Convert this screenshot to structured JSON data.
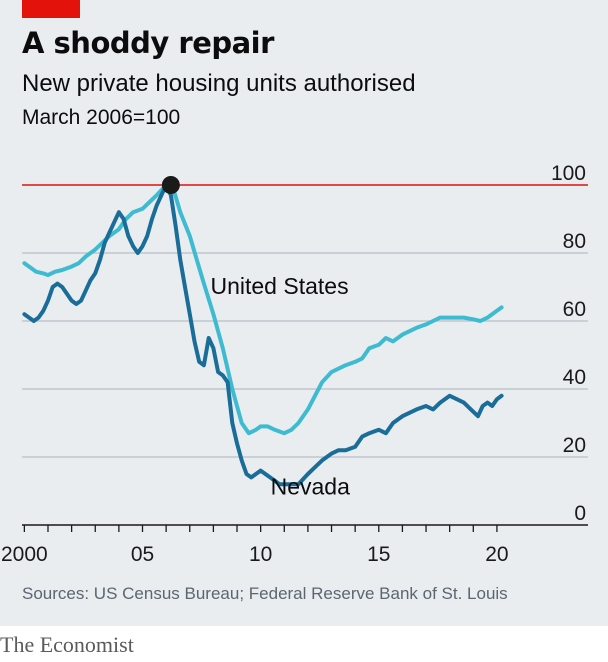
{
  "title": "A shoddy repair",
  "subtitle": "New private housing units authorised",
  "unit_label": "March 2006=100",
  "source": "Sources: US Census Bureau; Federal Reserve Bank of St. Louis",
  "footer": "The Economist",
  "colors": {
    "background": "#e9edf0",
    "accent_red": "#e3120b",
    "united_states": "#3ebbd0",
    "nevada": "#1a6d98",
    "gridline": "#b7c0c7",
    "baseline_100": "#e3120b",
    "marker": "#1a1a1a"
  },
  "chart_data": {
    "type": "line",
    "xlim": [
      1999.9,
      2021.4
    ],
    "ylim": [
      0,
      100
    ],
    "x_ticks": [
      2000,
      2001,
      2002,
      2003,
      2004,
      2005,
      2006,
      2007,
      2008,
      2009,
      2010,
      2011,
      2012,
      2013,
      2014,
      2015,
      2016,
      2017,
      2018,
      2019,
      2020
    ],
    "x_tick_labels": [
      {
        "x": 2000,
        "label": "2000"
      },
      {
        "x": 2005,
        "label": "05"
      },
      {
        "x": 2010,
        "label": "10"
      },
      {
        "x": 2015,
        "label": "15"
      },
      {
        "x": 2020,
        "label": "20"
      }
    ],
    "y_ticks": [
      0,
      20,
      40,
      60,
      80,
      100
    ],
    "y_tick_labels": [
      "0",
      "20",
      "40",
      "60",
      "80",
      "100"
    ],
    "grid": true,
    "reference_line": {
      "y": 100
    },
    "marker_point": {
      "x": 2006.2,
      "y": 100
    },
    "series": [
      {
        "name": "United States",
        "points": [
          [
            2000.0,
            77
          ],
          [
            2000.2,
            76
          ],
          [
            2000.5,
            74.5
          ],
          [
            2000.8,
            74
          ],
          [
            2001.0,
            73.5
          ],
          [
            2001.3,
            74.5
          ],
          [
            2001.6,
            75
          ],
          [
            2002.0,
            76
          ],
          [
            2002.3,
            77
          ],
          [
            2002.6,
            79
          ],
          [
            2003.0,
            81
          ],
          [
            2003.3,
            83
          ],
          [
            2003.6,
            85
          ],
          [
            2004.0,
            87
          ],
          [
            2004.3,
            90
          ],
          [
            2004.6,
            92
          ],
          [
            2005.0,
            93
          ],
          [
            2005.3,
            95
          ],
          [
            2005.6,
            97
          ],
          [
            2006.0,
            100
          ],
          [
            2006.3,
            99
          ],
          [
            2006.6,
            92
          ],
          [
            2007.0,
            85
          ],
          [
            2007.3,
            78
          ],
          [
            2007.6,
            71
          ],
          [
            2008.0,
            62
          ],
          [
            2008.4,
            52
          ],
          [
            2008.8,
            40
          ],
          [
            2009.2,
            30
          ],
          [
            2009.5,
            27
          ],
          [
            2009.8,
            28
          ],
          [
            2010.0,
            29
          ],
          [
            2010.3,
            29
          ],
          [
            2010.6,
            28
          ],
          [
            2011.0,
            27
          ],
          [
            2011.3,
            28
          ],
          [
            2011.6,
            30
          ],
          [
            2012.0,
            34
          ],
          [
            2012.3,
            38
          ],
          [
            2012.6,
            42
          ],
          [
            2013.0,
            45
          ],
          [
            2013.3,
            46
          ],
          [
            2013.6,
            47
          ],
          [
            2014.0,
            48
          ],
          [
            2014.3,
            49
          ],
          [
            2014.6,
            52
          ],
          [
            2015.0,
            53
          ],
          [
            2015.3,
            55
          ],
          [
            2015.6,
            54
          ],
          [
            2016.0,
            56
          ],
          [
            2016.3,
            57
          ],
          [
            2016.6,
            58
          ],
          [
            2017.0,
            59
          ],
          [
            2017.3,
            60
          ],
          [
            2017.6,
            61
          ],
          [
            2018.0,
            61
          ],
          [
            2018.3,
            61
          ],
          [
            2018.6,
            61
          ],
          [
            2019.0,
            60.5
          ],
          [
            2019.3,
            60
          ],
          [
            2019.6,
            61
          ],
          [
            2020.0,
            63
          ],
          [
            2020.2,
            64
          ]
        ]
      },
      {
        "name": "Nevada",
        "points": [
          [
            2000.0,
            62
          ],
          [
            2000.2,
            61
          ],
          [
            2000.4,
            60
          ],
          [
            2000.6,
            61
          ],
          [
            2000.8,
            63
          ],
          [
            2001.0,
            66
          ],
          [
            2001.2,
            70
          ],
          [
            2001.4,
            71
          ],
          [
            2001.6,
            70
          ],
          [
            2001.8,
            68
          ],
          [
            2002.0,
            66
          ],
          [
            2002.2,
            65
          ],
          [
            2002.4,
            66
          ],
          [
            2002.6,
            69
          ],
          [
            2002.8,
            72
          ],
          [
            2003.0,
            74
          ],
          [
            2003.2,
            78
          ],
          [
            2003.4,
            83
          ],
          [
            2003.6,
            86
          ],
          [
            2003.8,
            89
          ],
          [
            2004.0,
            92
          ],
          [
            2004.2,
            90
          ],
          [
            2004.4,
            85
          ],
          [
            2004.6,
            82
          ],
          [
            2004.8,
            80
          ],
          [
            2005.0,
            82
          ],
          [
            2005.2,
            85
          ],
          [
            2005.4,
            90
          ],
          [
            2005.6,
            94
          ],
          [
            2005.8,
            97
          ],
          [
            2006.0,
            100
          ],
          [
            2006.2,
            97
          ],
          [
            2006.4,
            88
          ],
          [
            2006.6,
            78
          ],
          [
            2006.8,
            70
          ],
          [
            2007.0,
            62
          ],
          [
            2007.2,
            54
          ],
          [
            2007.4,
            48
          ],
          [
            2007.6,
            47
          ],
          [
            2007.8,
            55
          ],
          [
            2008.0,
            52
          ],
          [
            2008.2,
            45
          ],
          [
            2008.4,
            44
          ],
          [
            2008.6,
            42
          ],
          [
            2008.8,
            30
          ],
          [
            2009.0,
            24
          ],
          [
            2009.2,
            19
          ],
          [
            2009.4,
            15
          ],
          [
            2009.6,
            14
          ],
          [
            2009.8,
            15
          ],
          [
            2010.0,
            16
          ],
          [
            2010.2,
            15
          ],
          [
            2010.4,
            14
          ],
          [
            2010.6,
            13
          ],
          [
            2010.8,
            12
          ],
          [
            2011.0,
            12
          ],
          [
            2011.3,
            12
          ],
          [
            2011.6,
            12
          ],
          [
            2012.0,
            15
          ],
          [
            2012.3,
            17
          ],
          [
            2012.6,
            19
          ],
          [
            2013.0,
            21
          ],
          [
            2013.3,
            22
          ],
          [
            2013.6,
            22
          ],
          [
            2014.0,
            23
          ],
          [
            2014.3,
            26
          ],
          [
            2014.6,
            27
          ],
          [
            2015.0,
            28
          ],
          [
            2015.3,
            27
          ],
          [
            2015.6,
            30
          ],
          [
            2016.0,
            32
          ],
          [
            2016.3,
            33
          ],
          [
            2016.6,
            34
          ],
          [
            2017.0,
            35
          ],
          [
            2017.3,
            34
          ],
          [
            2017.6,
            36
          ],
          [
            2018.0,
            38
          ],
          [
            2018.3,
            37
          ],
          [
            2018.6,
            36
          ],
          [
            2018.9,
            34
          ],
          [
            2019.2,
            32
          ],
          [
            2019.4,
            35
          ],
          [
            2019.6,
            36
          ],
          [
            2019.8,
            35
          ],
          [
            2020.0,
            37
          ],
          [
            2020.2,
            38
          ]
        ]
      }
    ],
    "annotations": [
      {
        "series": "United States",
        "text": "United States",
        "x": 2010.8,
        "y": 68
      },
      {
        "series": "Nevada",
        "text": "Nevada",
        "x": 2012.1,
        "y": 9
      }
    ]
  }
}
